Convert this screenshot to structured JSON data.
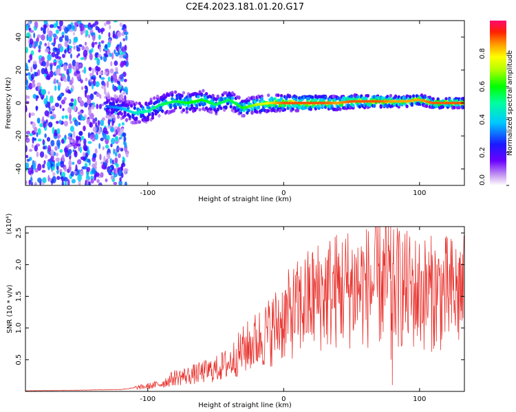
{
  "chart_data": [
    {
      "type": "heatmap",
      "title": "C2E4.2023.181.01.20.G17",
      "xlabel": "Height of straight line (km)",
      "ylabel": "Frequency (Hz)",
      "xlim": [
        -190,
        133
      ],
      "ylim": [
        -50,
        50
      ],
      "xticks": [
        -100,
        0,
        100
      ],
      "yticks": [
        -40,
        -20,
        0,
        20,
        40
      ],
      "colorbar": {
        "label": "Normalized spectral amplitude",
        "range": [
          0,
          1
        ],
        "ticks": [
          0.0,
          0.2,
          0.4,
          0.6,
          0.8
        ]
      },
      "ridge": {
        "x": [
          -130,
          -120,
          -110,
          -100,
          -90,
          -80,
          -70,
          -60,
          -50,
          -40,
          -30,
          -20,
          -10,
          0,
          10,
          20,
          30,
          40,
          50,
          60,
          70,
          80,
          90,
          100,
          110,
          120,
          133
        ],
        "frequency": [
          -2,
          -3,
          -6,
          -5,
          -1,
          1,
          0,
          2,
          -1,
          2,
          -3,
          -1,
          0,
          0,
          0,
          0,
          0,
          0,
          1,
          1,
          1,
          1,
          1,
          2,
          0,
          0,
          0
        ],
        "amplitude": [
          0.3,
          0.35,
          0.45,
          0.5,
          0.55,
          0.55,
          0.6,
          0.6,
          0.55,
          0.55,
          0.6,
          0.7,
          0.8,
          0.9,
          0.9,
          0.9,
          0.9,
          0.85,
          0.9,
          0.9,
          0.9,
          0.85,
          0.85,
          0.85,
          0.9,
          0.9,
          0.9
        ]
      },
      "noise_region": {
        "x": [
          -190,
          -115
        ],
        "amplitude": [
          0.05,
          0.45
        ]
      }
    },
    {
      "type": "line",
      "xlabel": "Height of straight line (km)",
      "ylabel": "SNR (10 * v/v)",
      "yscale_label": "(x10⁴)",
      "xlim": [
        -190,
        133
      ],
      "ylim": [
        0,
        2.6
      ],
      "xticks": [
        -100,
        0,
        100
      ],
      "yticks": [
        0.5,
        1.0,
        1.5,
        2.0,
        2.5
      ],
      "color": "#e8322d",
      "envelope": {
        "x": [
          -190,
          -150,
          -120,
          -100,
          -90,
          -80,
          -70,
          -60,
          -50,
          -40,
          -30,
          -20,
          -10,
          0,
          10,
          20,
          30,
          40,
          50,
          60,
          70,
          75,
          80,
          85,
          90,
          100,
          110,
          120,
          133
        ],
        "y": [
          0.01,
          0.02,
          0.03,
          0.08,
          0.12,
          0.22,
          0.25,
          0.3,
          0.35,
          0.45,
          0.65,
          0.8,
          0.95,
          1.15,
          1.3,
          1.45,
          1.55,
          1.6,
          1.65,
          1.65,
          1.7,
          1.75,
          1.6,
          1.65,
          1.6,
          1.55,
          1.55,
          1.55,
          1.55
        ]
      },
      "spikes": [
        {
          "x": 77,
          "y": 2.6
        },
        {
          "x": 79,
          "y": 0.5
        },
        {
          "x": 80,
          "y": 0.1
        },
        {
          "x": 84,
          "y": 2.35
        },
        {
          "x": 130,
          "y": 2.2
        }
      ]
    }
  ]
}
